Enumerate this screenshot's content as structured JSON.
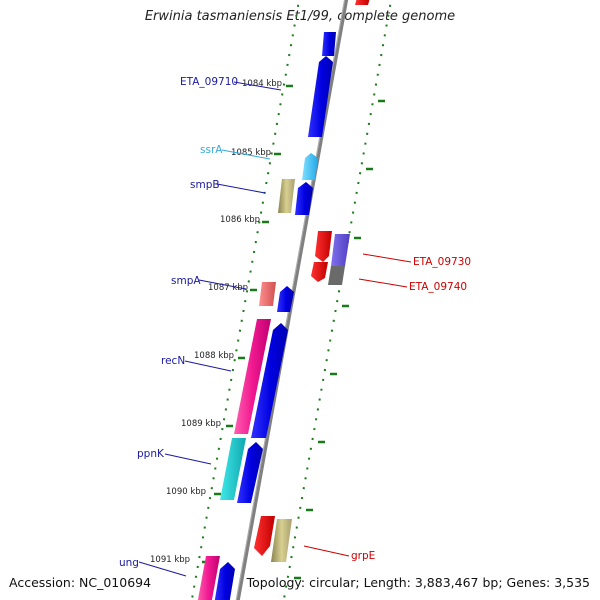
{
  "title": "Erwinia tasmaniensis Et1/99, complete genome",
  "footer": {
    "accession": "Accession: NC_010694",
    "topology": "Topology: circular; Length: 3,883,467 bp; Genes: 3,535"
  },
  "colors": {
    "backbone": "#808080",
    "ticks": "#1a7a1a",
    "forward_label": "#1a1aa0",
    "reverse_label": "#cc0000",
    "rna_label": "#33aadd"
  },
  "scale_labels": [
    "1084 kbp",
    "1085 kbp",
    "1086 kbp",
    "1087 kbp",
    "1088 kbp",
    "1089 kbp",
    "1090 kbp",
    "1091 kbp"
  ],
  "genes": [
    {
      "name": "ETA_09710",
      "strand": "forward"
    },
    {
      "name": "ssrA",
      "strand": "rna"
    },
    {
      "name": "smpB",
      "strand": "forward"
    },
    {
      "name": "ETA_09730",
      "strand": "reverse"
    },
    {
      "name": "ETA_09740",
      "strand": "reverse"
    },
    {
      "name": "smpA",
      "strand": "forward"
    },
    {
      "name": "recN",
      "strand": "forward"
    },
    {
      "name": "ppnK",
      "strand": "forward"
    },
    {
      "name": "grpE",
      "strand": "reverse"
    },
    {
      "name": "ung",
      "strand": "forward"
    }
  ]
}
